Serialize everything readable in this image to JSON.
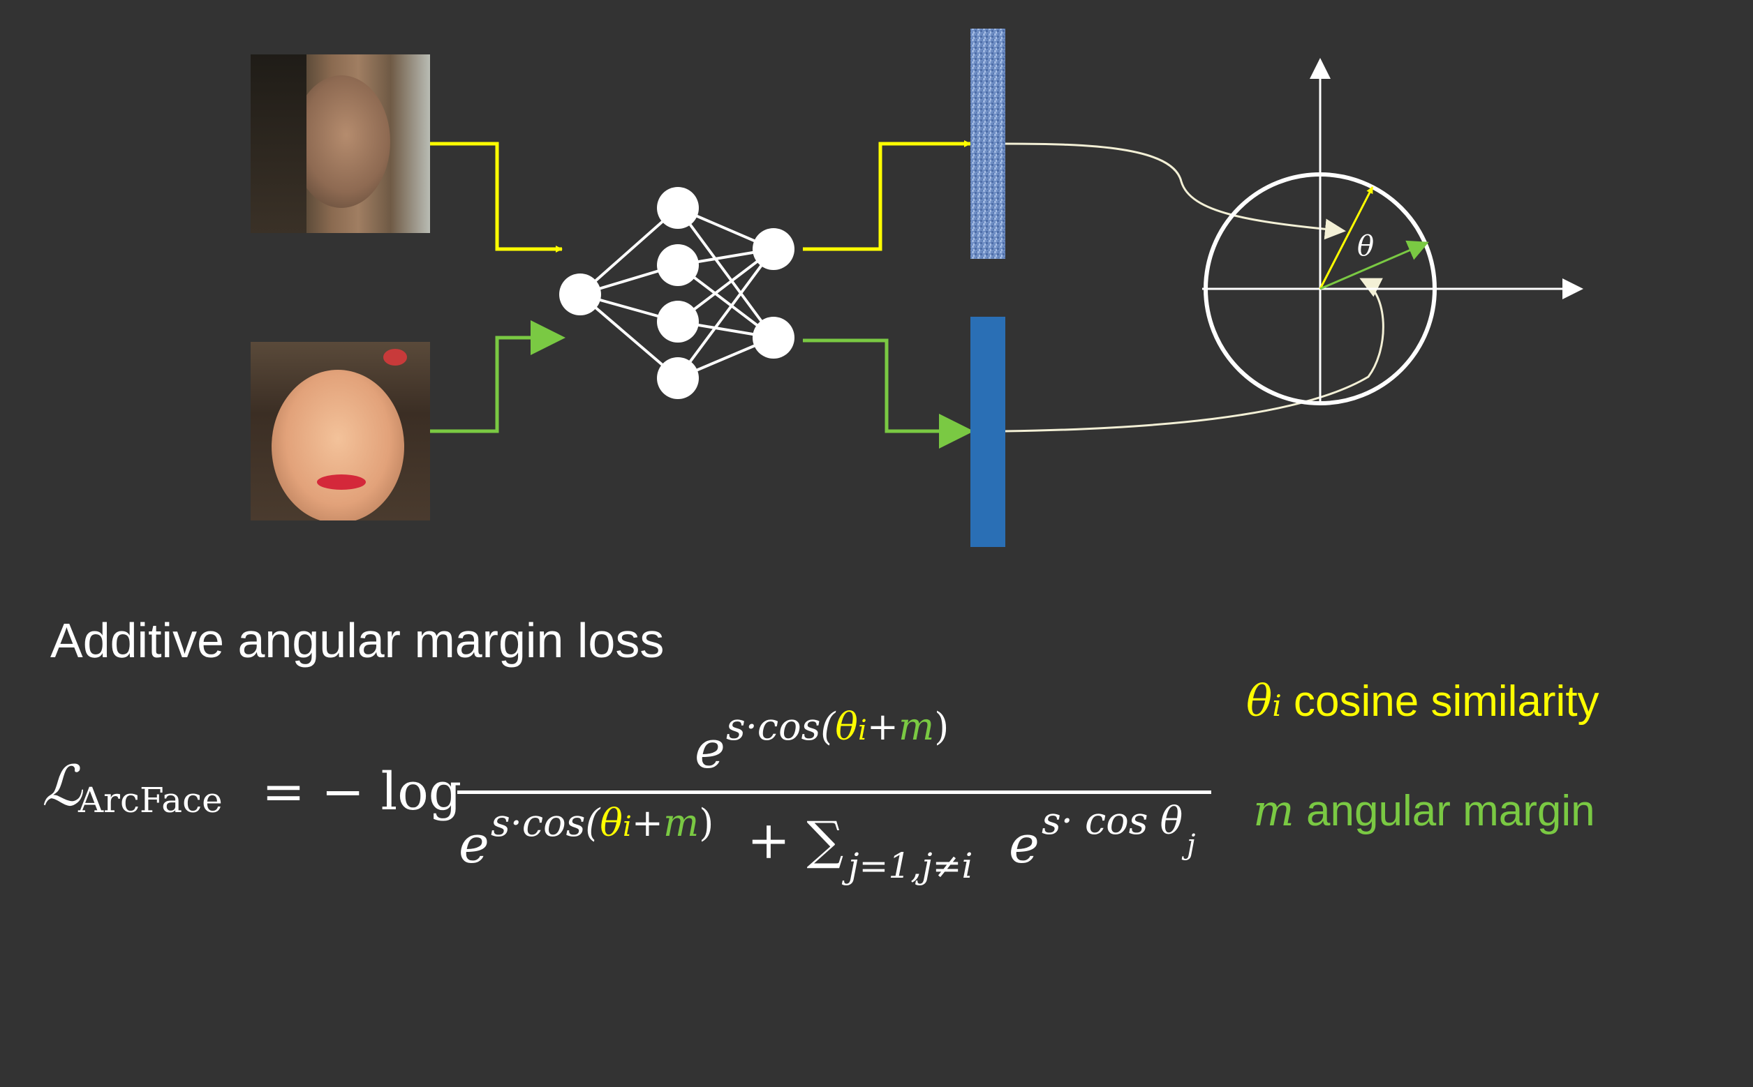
{
  "colors": {
    "background": "#333333",
    "yellow": "#ffff00",
    "green": "#7ac943",
    "blue": "#2a6fb5",
    "white": "#ffffff"
  },
  "diagram": {
    "angle_label": "θ"
  },
  "subtitle": "Additive angular margin loss",
  "formula": {
    "lhs_symbol": "ℒ",
    "lhs_sub": "ArcFace",
    "equals": "=",
    "minus_log": "− log",
    "num_e": "e",
    "num_exp_a": "s·cos(",
    "theta": "θ",
    "theta_sub": "i",
    "plus": "+",
    "m": "m",
    "close": ")",
    "den_e": "e",
    "den_exp_a": "s·cos(",
    "den_plus_sum": "+ ∑",
    "sum_sub": "j=1,j≠i",
    "den_e2": "e",
    "den_exp2": "s· cos θ",
    "den_exp2_sub": "j"
  },
  "legend": {
    "theta_symbol": "θ",
    "theta_sub": "i",
    "theta_text": "cosine similarity",
    "m_symbol": "m",
    "m_text": "angular margin"
  }
}
